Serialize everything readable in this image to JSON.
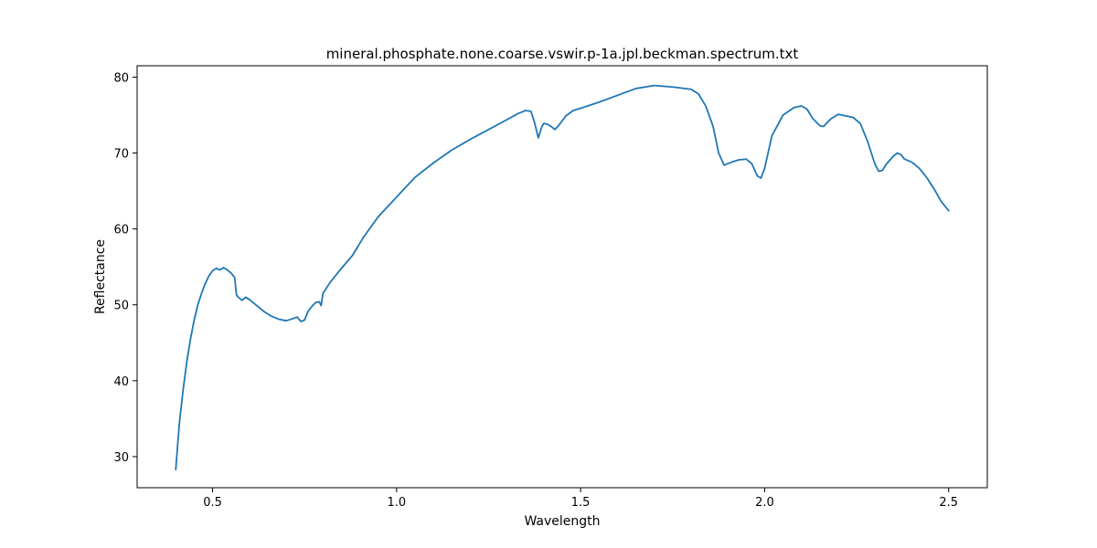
{
  "chart_data": {
    "type": "line",
    "title": "mineral.phosphate.none.coarse.vswir.p-1a.jpl.beckman.spectrum.txt",
    "xlabel": "Wavelength",
    "ylabel": "Reflectance",
    "xlim": [
      0.295,
      2.605
    ],
    "ylim": [
      25.9,
      81.5
    ],
    "xticks": [
      0.5,
      1.0,
      1.5,
      2.0,
      2.5
    ],
    "xtick_labels": [
      "0.5",
      "1.0",
      "1.5",
      "2.0",
      "2.5"
    ],
    "yticks": [
      30,
      40,
      50,
      60,
      70,
      80
    ],
    "ytick_labels": [
      "30",
      "40",
      "50",
      "60",
      "70",
      "80"
    ],
    "grid": false,
    "series": [
      {
        "color": "#1f77b4",
        "points": [
          [
            0.4,
            28.3
          ],
          [
            0.405,
            31.5
          ],
          [
            0.41,
            34.5
          ],
          [
            0.42,
            38.8
          ],
          [
            0.43,
            42.5
          ],
          [
            0.44,
            45.5
          ],
          [
            0.45,
            48.0
          ],
          [
            0.46,
            50.0
          ],
          [
            0.47,
            51.5
          ],
          [
            0.48,
            52.8
          ],
          [
            0.49,
            53.8
          ],
          [
            0.5,
            54.5
          ],
          [
            0.51,
            54.8
          ],
          [
            0.52,
            54.6
          ],
          [
            0.53,
            54.9
          ],
          [
            0.54,
            54.6
          ],
          [
            0.55,
            54.2
          ],
          [
            0.56,
            53.6
          ],
          [
            0.565,
            51.3
          ],
          [
            0.57,
            51.0
          ],
          [
            0.58,
            50.6
          ],
          [
            0.59,
            51.0
          ],
          [
            0.6,
            50.7
          ],
          [
            0.62,
            49.9
          ],
          [
            0.64,
            49.1
          ],
          [
            0.66,
            48.5
          ],
          [
            0.68,
            48.1
          ],
          [
            0.7,
            47.9
          ],
          [
            0.72,
            48.2
          ],
          [
            0.73,
            48.4
          ],
          [
            0.74,
            47.8
          ],
          [
            0.75,
            48.0
          ],
          [
            0.76,
            49.2
          ],
          [
            0.77,
            49.8
          ],
          [
            0.78,
            50.3
          ],
          [
            0.79,
            50.4
          ],
          [
            0.795,
            49.9
          ],
          [
            0.8,
            51.5
          ],
          [
            0.82,
            53.0
          ],
          [
            0.85,
            54.8
          ],
          [
            0.88,
            56.5
          ],
          [
            0.91,
            58.9
          ],
          [
            0.95,
            61.6
          ],
          [
            1.0,
            64.2
          ],
          [
            1.05,
            66.8
          ],
          [
            1.1,
            68.7
          ],
          [
            1.15,
            70.4
          ],
          [
            1.2,
            71.8
          ],
          [
            1.25,
            73.1
          ],
          [
            1.3,
            74.4
          ],
          [
            1.33,
            75.2
          ],
          [
            1.35,
            75.6
          ],
          [
            1.365,
            75.5
          ],
          [
            1.375,
            74.0
          ],
          [
            1.385,
            72.0
          ],
          [
            1.395,
            73.5
          ],
          [
            1.4,
            73.9
          ],
          [
            1.41,
            73.8
          ],
          [
            1.42,
            73.5
          ],
          [
            1.43,
            73.1
          ],
          [
            1.44,
            73.6
          ],
          [
            1.46,
            74.9
          ],
          [
            1.48,
            75.6
          ],
          [
            1.5,
            75.9
          ],
          [
            1.55,
            76.7
          ],
          [
            1.6,
            77.6
          ],
          [
            1.65,
            78.5
          ],
          [
            1.7,
            78.9
          ],
          [
            1.75,
            78.7
          ],
          [
            1.8,
            78.4
          ],
          [
            1.82,
            77.8
          ],
          [
            1.84,
            76.2
          ],
          [
            1.86,
            73.5
          ],
          [
            1.875,
            70.0
          ],
          [
            1.89,
            68.4
          ],
          [
            1.91,
            68.8
          ],
          [
            1.93,
            69.1
          ],
          [
            1.95,
            69.2
          ],
          [
            1.965,
            68.6
          ],
          [
            1.98,
            67.0
          ],
          [
            1.99,
            66.7
          ],
          [
            2.0,
            68.0
          ],
          [
            2.02,
            72.3
          ],
          [
            2.05,
            75.0
          ],
          [
            2.08,
            76.0
          ],
          [
            2.1,
            76.2
          ],
          [
            2.115,
            75.8
          ],
          [
            2.13,
            74.6
          ],
          [
            2.15,
            73.6
          ],
          [
            2.16,
            73.5
          ],
          [
            2.18,
            74.5
          ],
          [
            2.2,
            75.1
          ],
          [
            2.22,
            74.9
          ],
          [
            2.24,
            74.7
          ],
          [
            2.26,
            73.9
          ],
          [
            2.28,
            71.5
          ],
          [
            2.3,
            68.5
          ],
          [
            2.31,
            67.6
          ],
          [
            2.32,
            67.7
          ],
          [
            2.33,
            68.5
          ],
          [
            2.35,
            69.6
          ],
          [
            2.36,
            70.0
          ],
          [
            2.37,
            69.8
          ],
          [
            2.38,
            69.2
          ],
          [
            2.4,
            68.8
          ],
          [
            2.42,
            68.0
          ],
          [
            2.44,
            66.8
          ],
          [
            2.46,
            65.3
          ],
          [
            2.48,
            63.6
          ],
          [
            2.5,
            62.4
          ]
        ]
      }
    ]
  }
}
